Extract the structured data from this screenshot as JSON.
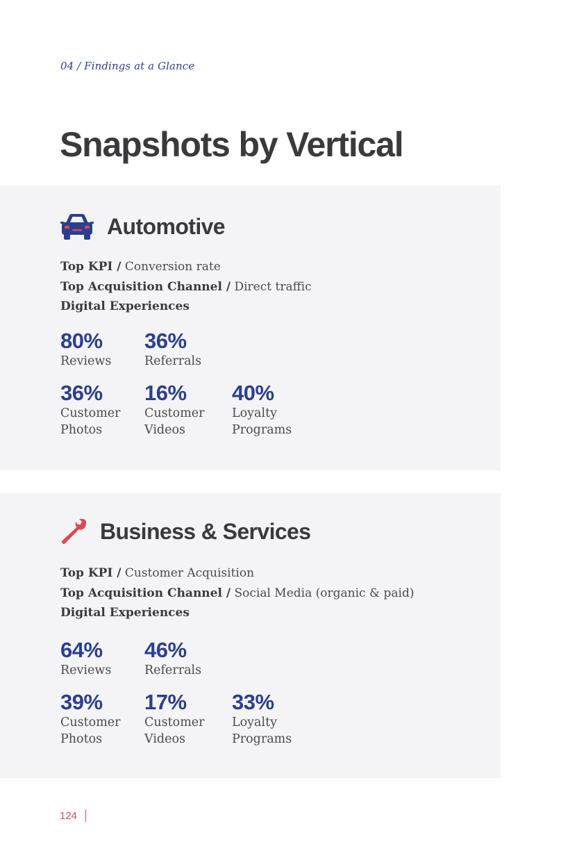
{
  "eyebrow": "04 / Findings at a Glance",
  "title": "Snapshots by Vertical",
  "colors": {
    "accent": "#2b3f8f",
    "highlight": "#e0474c",
    "panel": "#f4f4f6"
  },
  "verticals": [
    {
      "name": "Automotive",
      "icon": "car-icon",
      "kpi_label": "Top KPI /",
      "kpi_value": "Conversion rate",
      "channel_label": "Top Acquisition Channel /",
      "channel_value": "Direct traffic",
      "experiences_label": "Digital Experiences",
      "stats": [
        {
          "value": "80%",
          "label": "Reviews"
        },
        {
          "value": "36%",
          "label": "Referrals"
        },
        {
          "value": "36%",
          "label": "Customer Photos"
        },
        {
          "value": "16%",
          "label": "Customer Videos"
        },
        {
          "value": "40%",
          "label": "Loyalty Programs"
        }
      ]
    },
    {
      "name": "Business & Services",
      "icon": "wrench-icon",
      "kpi_label": "Top KPI /",
      "kpi_value": "Customer Acquisition",
      "channel_label": "Top Acquisition Channel /",
      "channel_value": "Social Media (organic & paid)",
      "experiences_label": "Digital Experiences",
      "stats": [
        {
          "value": "64%",
          "label": "Reviews"
        },
        {
          "value": "46%",
          "label": "Referrals"
        },
        {
          "value": "39%",
          "label": "Customer Photos"
        },
        {
          "value": "17%",
          "label": "Customer Videos"
        },
        {
          "value": "33%",
          "label": "Loyalty Programs"
        }
      ]
    }
  ],
  "page_number": "124"
}
